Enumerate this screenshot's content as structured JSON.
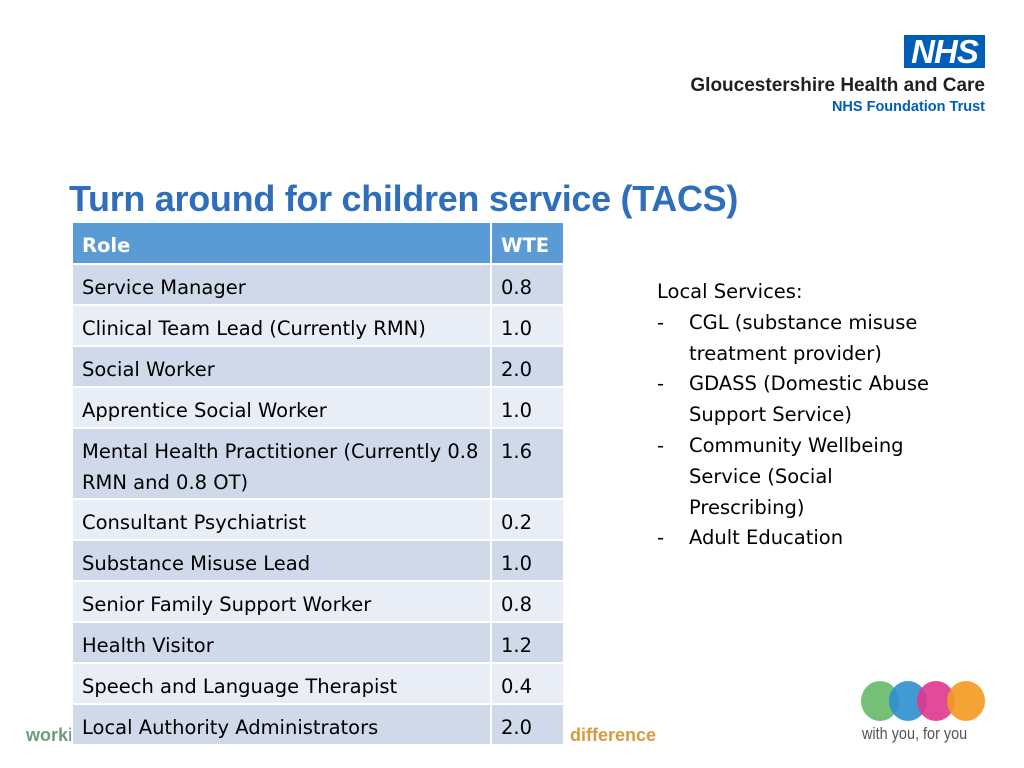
{
  "header": {
    "logo_text": "NHS",
    "organisation": "Gloucestershire Health and Care",
    "trust": "NHS Foundation Trust",
    "brand_color": "#005eb8"
  },
  "title": "Turn around for children service (TACS)",
  "table": {
    "headers": [
      "Role",
      "WTE"
    ],
    "rows": [
      {
        "role": "Service Manager",
        "wte": "0.8"
      },
      {
        "role": "Clinical Team Lead (Currently RMN)",
        "wte": "1.0"
      },
      {
        "role": "Social Worker",
        "wte": "2.0"
      },
      {
        "role": "Apprentice Social Worker",
        "wte": "1.0"
      },
      {
        "role": "Mental Health Practitioner (Currently 0.8 RMN and 0.8 OT)",
        "wte": "1.6"
      },
      {
        "role": "Consultant Psychiatrist",
        "wte": "0.2"
      },
      {
        "role": "Substance Misuse Lead",
        "wte": "1.0"
      },
      {
        "role": "Senior Family Support Worker",
        "wte": "0.8"
      },
      {
        "role": "Health Visitor",
        "wte": "1.2"
      },
      {
        "role": "Speech and Language Therapist",
        "wte": "0.4"
      },
      {
        "role": "Local Authority Administrators",
        "wte": "2.0"
      }
    ]
  },
  "local_services": {
    "heading": "Local Services:",
    "items": [
      "CGL (substance misuse treatment provider)",
      "GDASS (Domestic Abuse Support Service)",
      "Community Wellbeing Service (Social Prescribing)",
      "Adult Education"
    ]
  },
  "footer": {
    "left_text": "worki",
    "right_text": "difference",
    "tagline": "with you, for you"
  }
}
